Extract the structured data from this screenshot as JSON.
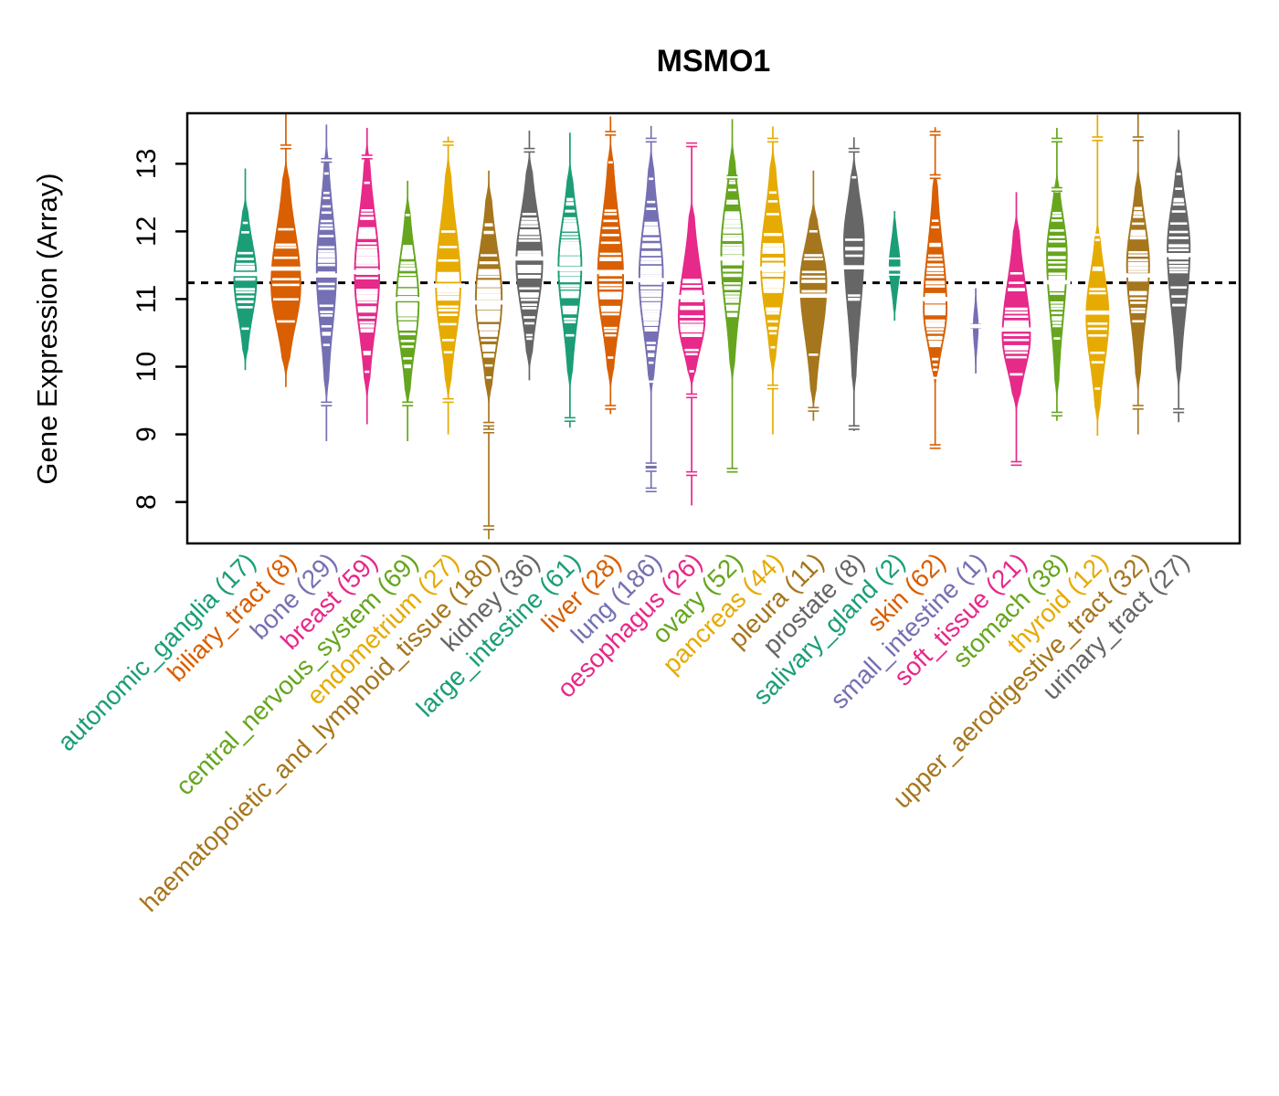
{
  "title": "MSMO1",
  "y_axis": {
    "label": "Gene Expression (Array)",
    "ticks": [
      8,
      9,
      10,
      11,
      12,
      13
    ],
    "range": [
      7.38,
      13.78
    ]
  },
  "reference_line": {
    "value": 11.24,
    "style": "dashed",
    "color": "#000000"
  },
  "palette": [
    "#1B9E77",
    "#D95F02",
    "#7570B3",
    "#E7298A",
    "#66A61E",
    "#E6AB02",
    "#A6761D",
    "#666666"
  ],
  "point_mark_color": "#FFFFFF",
  "chart_data": {
    "type": "violin",
    "title": "MSMO1",
    "xlabel": "",
    "ylabel": "Gene Expression (Array)",
    "ylim": [
      7.38,
      13.78
    ],
    "grid": false,
    "legend": "none",
    "reference_value": 11.24,
    "groups": [
      {
        "label": "autonomic_ganglia",
        "n": 17,
        "color": "#1B9E77",
        "median": 11.37,
        "peak": 11.3,
        "body_lo": 10.0,
        "body_hi": 12.55,
        "stem_lo": 9.95,
        "stem_hi": 12.93,
        "width": 0.62,
        "outliers": []
      },
      {
        "label": "biliary_tract",
        "n": 8,
        "color": "#D95F02",
        "median": 11.45,
        "peak": 11.2,
        "body_lo": 9.8,
        "body_hi": 13.1,
        "stem_lo": 9.7,
        "stem_hi": 13.74,
        "width": 0.8,
        "outliers": [
          13.25
        ]
      },
      {
        "label": "bone",
        "n": 29,
        "color": "#7570B3",
        "median": 11.35,
        "peak": 11.45,
        "body_lo": 9.4,
        "body_hi": 13.4,
        "stem_lo": 8.9,
        "stem_hi": 13.58,
        "width": 0.55,
        "outliers": [
          13.05,
          9.45
        ]
      },
      {
        "label": "breast",
        "n": 59,
        "color": "#E7298A",
        "median": 11.4,
        "peak": 11.35,
        "body_lo": 9.45,
        "body_hi": 13.4,
        "stem_lo": 9.15,
        "stem_hi": 13.53,
        "width": 0.68,
        "outliers": [
          13.1
        ]
      },
      {
        "label": "central_nervous_system",
        "n": 69,
        "color": "#66A61E",
        "median": 11.0,
        "peak": 10.95,
        "body_lo": 9.35,
        "body_hi": 12.6,
        "stem_lo": 8.9,
        "stem_hi": 12.75,
        "width": 0.62,
        "outliers": [
          9.45
        ]
      },
      {
        "label": "endometrium",
        "n": 27,
        "color": "#E6AB02",
        "median": 11.2,
        "peak": 11.2,
        "body_lo": 9.45,
        "body_hi": 13.2,
        "stem_lo": 9.0,
        "stem_hi": 13.4,
        "width": 0.68,
        "outliers": [
          9.5,
          13.3
        ]
      },
      {
        "label": "haematopoietic_and_lymphoid_tissue",
        "n": 180,
        "color": "#A6761D",
        "median": 10.95,
        "peak": 11.0,
        "body_lo": 9.4,
        "body_hi": 12.8,
        "stem_lo": 7.45,
        "stem_hi": 12.9,
        "width": 0.72,
        "outliers": [
          9.15,
          9.05,
          7.62
        ]
      },
      {
        "label": "kidney",
        "n": 36,
        "color": "#666666",
        "median": 11.6,
        "peak": 11.55,
        "body_lo": 9.9,
        "body_hi": 13.2,
        "stem_lo": 9.8,
        "stem_hi": 13.49,
        "width": 0.72,
        "outliers": [
          13.2
        ]
      },
      {
        "label": "large_intestine",
        "n": 61,
        "color": "#1B9E77",
        "median": 11.45,
        "peak": 11.5,
        "body_lo": 9.6,
        "body_hi": 13.1,
        "stem_lo": 9.1,
        "stem_hi": 13.46,
        "width": 0.64,
        "outliers": [
          9.22
        ]
      },
      {
        "label": "liver",
        "n": 28,
        "color": "#D95F02",
        "median": 11.4,
        "peak": 11.3,
        "body_lo": 9.6,
        "body_hi": 13.4,
        "stem_lo": 9.3,
        "stem_hi": 13.7,
        "width": 0.7,
        "outliers": [
          13.45,
          9.4
        ]
      },
      {
        "label": "lung",
        "n": 186,
        "color": "#7570B3",
        "median": 11.28,
        "peak": 11.3,
        "body_lo": 9.5,
        "body_hi": 13.3,
        "stem_lo": 8.2,
        "stem_hi": 13.56,
        "width": 0.66,
        "outliers": [
          13.35,
          8.55,
          8.48,
          8.18
        ]
      },
      {
        "label": "oesophagus",
        "n": 26,
        "color": "#E7298A",
        "median": 11.03,
        "peak": 10.7,
        "body_lo": 9.65,
        "body_hi": 12.5,
        "stem_lo": 7.95,
        "stem_hi": 13.3,
        "width": 0.72,
        "outliers": [
          13.28,
          9.57,
          8.42
        ]
      },
      {
        "label": "ovary",
        "n": 52,
        "color": "#66A61E",
        "median": 11.6,
        "peak": 11.7,
        "body_lo": 9.7,
        "body_hi": 13.4,
        "stem_lo": 8.45,
        "stem_hi": 13.66,
        "width": 0.62,
        "outliers": [
          8.47,
          12.8
        ]
      },
      {
        "label": "pancreas",
        "n": 44,
        "color": "#E6AB02",
        "median": 11.45,
        "peak": 11.5,
        "body_lo": 9.8,
        "body_hi": 13.3,
        "stem_lo": 9.0,
        "stem_hi": 13.55,
        "width": 0.66,
        "outliers": [
          9.7,
          13.35
        ]
      },
      {
        "label": "pleura",
        "n": 11,
        "color": "#A6761D",
        "median": 11.05,
        "peak": 11.25,
        "body_lo": 9.35,
        "body_hi": 12.5,
        "stem_lo": 9.2,
        "stem_hi": 12.9,
        "width": 0.72,
        "outliers": [
          9.37
        ]
      },
      {
        "label": "prostate",
        "n": 8,
        "color": "#666666",
        "median": 11.47,
        "peak": 11.85,
        "body_lo": 9.5,
        "body_hi": 13.2,
        "stem_lo": 9.05,
        "stem_hi": 13.39,
        "width": 0.56,
        "outliers": [
          13.2,
          9.1
        ]
      },
      {
        "label": "salivary_gland",
        "n": 2,
        "color": "#1B9E77",
        "median": 11.45,
        "peak": 11.5,
        "body_lo": 10.7,
        "body_hi": 12.3,
        "stem_lo": 10.68,
        "stem_hi": 12.3,
        "width": 0.3,
        "outliers": [
          11.6,
          11.36
        ]
      },
      {
        "label": "skin",
        "n": 62,
        "color": "#D95F02",
        "median": 11.0,
        "peak": 10.85,
        "body_lo": 9.65,
        "body_hi": 13.0,
        "stem_lo": 8.8,
        "stem_hi": 13.54,
        "width": 0.64,
        "outliers": [
          13.45,
          12.81,
          8.82
        ]
      },
      {
        "label": "small_intestine",
        "n": 1,
        "color": "#7570B3",
        "median": 10.6,
        "peak": 10.6,
        "body_lo": 9.92,
        "body_hi": 11.15,
        "stem_lo": 9.9,
        "stem_hi": 11.16,
        "width": 0.15,
        "outliers": [
          10.6
        ]
      },
      {
        "label": "soft_tissue",
        "n": 21,
        "color": "#E7298A",
        "median": 10.55,
        "peak": 10.45,
        "body_lo": 9.3,
        "body_hi": 12.3,
        "stem_lo": 8.55,
        "stem_hi": 12.58,
        "width": 0.76,
        "outliers": [
          8.57
        ]
      },
      {
        "label": "stomach",
        "n": 38,
        "color": "#66A61E",
        "median": 11.25,
        "peak": 11.65,
        "body_lo": 9.45,
        "body_hi": 12.95,
        "stem_lo": 9.2,
        "stem_hi": 13.53,
        "width": 0.56,
        "outliers": [
          13.35,
          12.62,
          9.3
        ]
      },
      {
        "label": "thyroid",
        "n": 12,
        "color": "#E6AB02",
        "median": 10.8,
        "peak": 10.75,
        "body_lo": 9.1,
        "body_hi": 12.2,
        "stem_lo": 8.98,
        "stem_hi": 13.72,
        "width": 0.62,
        "outliers": [
          13.37
        ]
      },
      {
        "label": "upper_aerodigestive_tract",
        "n": 32,
        "color": "#A6761D",
        "median": 11.35,
        "peak": 11.5,
        "body_lo": 9.55,
        "body_hi": 13.0,
        "stem_lo": 9.0,
        "stem_hi": 13.73,
        "width": 0.62,
        "outliers": [
          13.37,
          9.4
        ]
      },
      {
        "label": "urinary_tract",
        "n": 27,
        "color": "#666666",
        "median": 11.65,
        "peak": 11.75,
        "body_lo": 9.6,
        "body_hi": 13.25,
        "stem_lo": 9.18,
        "stem_hi": 13.5,
        "width": 0.62,
        "outliers": [
          9.35
        ]
      }
    ]
  }
}
